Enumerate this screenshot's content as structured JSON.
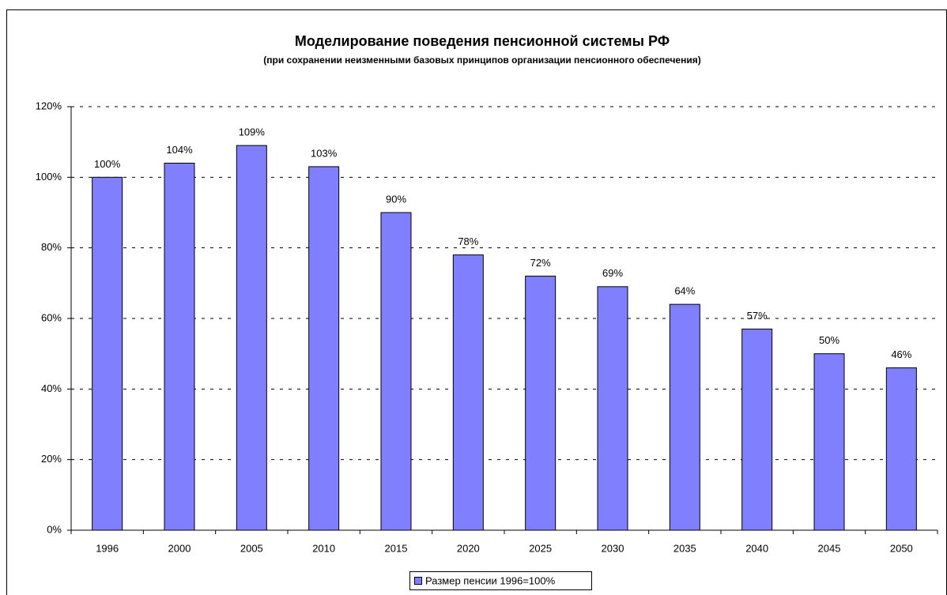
{
  "chart_data": {
    "type": "bar",
    "title": "Моделирование поведения пенсионной системы РФ",
    "subtitle": "(при сохранении неизменными базовых принципов организации пенсионного обеспечения)",
    "categories": [
      "1996",
      "2000",
      "2005",
      "2010",
      "2015",
      "2020",
      "2025",
      "2030",
      "2035",
      "2040",
      "2045",
      "2050"
    ],
    "series": [
      {
        "name": "Размер пенсии 1996=100%",
        "color": "#8080ff",
        "values": [
          100,
          104,
          109,
          103,
          90,
          78,
          72,
          69,
          64,
          57,
          50,
          46
        ],
        "value_labels": [
          "100%",
          "104%",
          "109%",
          "103%",
          "90%",
          "78%",
          "72%",
          "69%",
          "64%",
          "57%",
          "50%",
          "46%"
        ]
      }
    ],
    "ylim": [
      0,
      120
    ],
    "yticks": [
      {
        "value": 0,
        "label": "0%"
      },
      {
        "value": 20,
        "label": "20%"
      },
      {
        "value": 40,
        "label": "40%"
      },
      {
        "value": 60,
        "label": "60%"
      },
      {
        "value": 80,
        "label": "80%"
      },
      {
        "value": 100,
        "label": "100%"
      },
      {
        "value": 120,
        "label": "120%"
      }
    ],
    "grid": true,
    "legend": "bottom"
  }
}
